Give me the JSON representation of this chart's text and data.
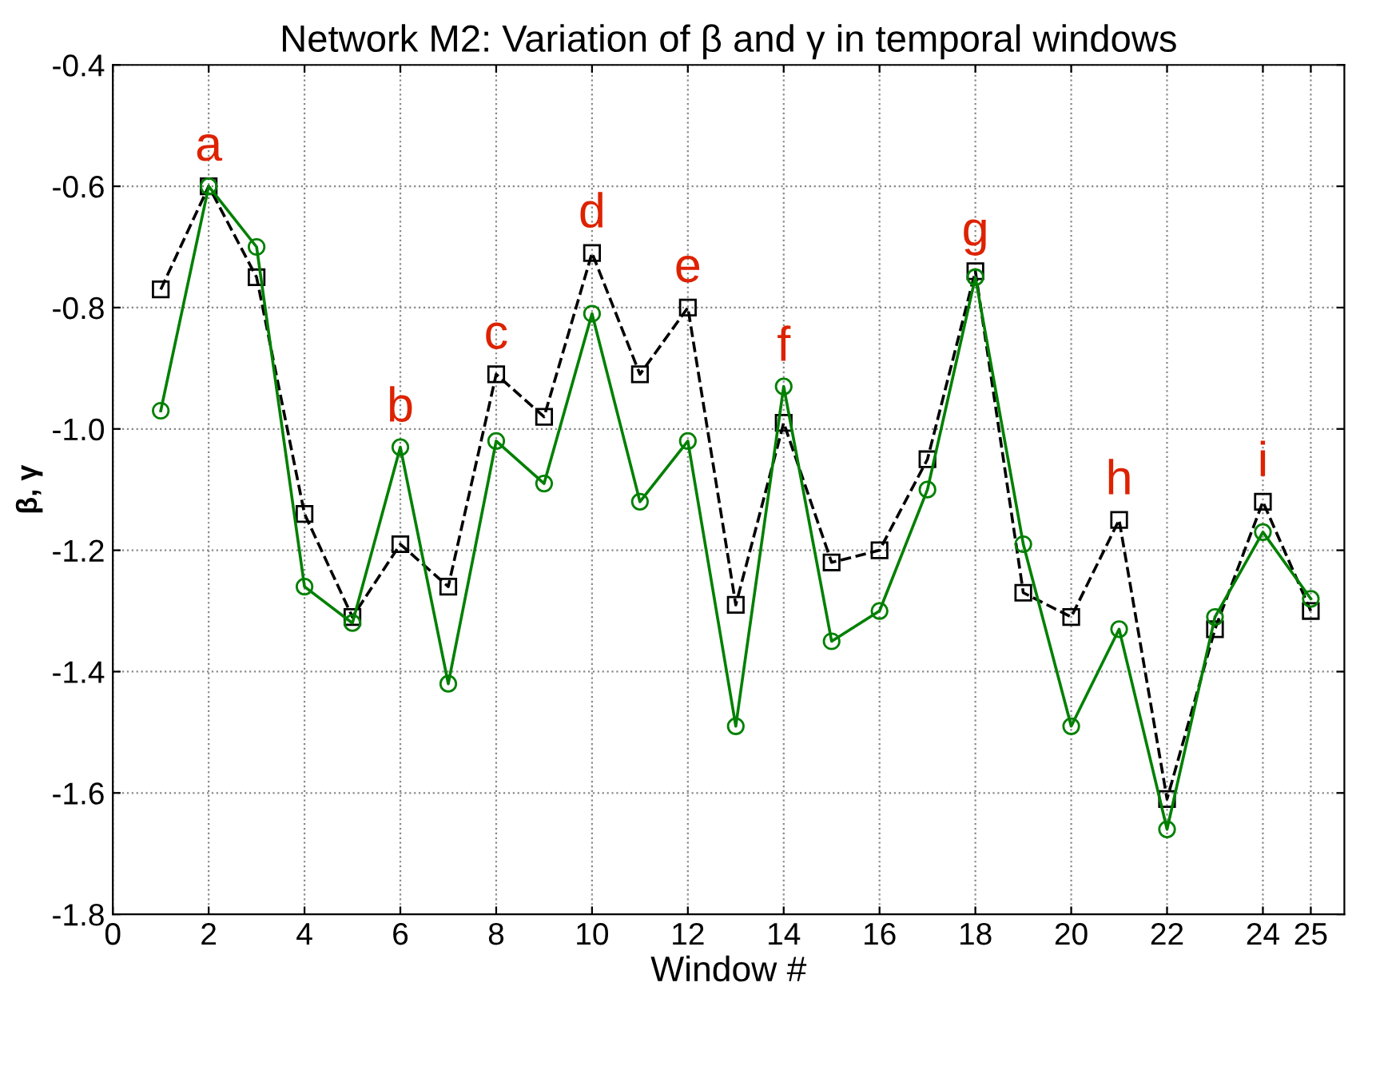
{
  "chart_data": {
    "type": "line",
    "title": "Network M2: Variation of β and γ in temporal windows",
    "xlabel": "Window #",
    "ylabel": "β, γ",
    "x": [
      1,
      2,
      3,
      4,
      5,
      6,
      7,
      8,
      9,
      10,
      11,
      12,
      13,
      14,
      15,
      16,
      17,
      18,
      19,
      20,
      21,
      22,
      23,
      24,
      25
    ],
    "series": [
      {
        "color": "#000000",
        "marker": "square",
        "line_style": "dashed",
        "values": [
          -0.77,
          -0.6,
          -0.75,
          -1.14,
          -1.31,
          -1.19,
          -1.26,
          -0.91,
          -0.98,
          -0.71,
          -0.91,
          -0.8,
          -1.29,
          -0.99,
          -1.22,
          -1.2,
          -1.05,
          -0.74,
          -1.27,
          -1.31,
          -1.15,
          -1.61,
          -1.33,
          -1.12,
          -1.3
        ]
      },
      {
        "color": "#008000",
        "marker": "circle",
        "line_style": "solid",
        "values": [
          -0.97,
          -0.6,
          -0.7,
          -1.26,
          -1.32,
          -1.03,
          -1.42,
          -1.02,
          -1.09,
          -0.81,
          -1.12,
          -1.02,
          -1.49,
          -0.93,
          -1.35,
          -1.3,
          -1.1,
          -0.75,
          -1.19,
          -1.49,
          -1.33,
          -1.66,
          -1.31,
          -1.17,
          -1.28
        ]
      }
    ],
    "annotations": [
      {
        "text": "a",
        "x": 2,
        "y": -0.6
      },
      {
        "text": "b",
        "x": 6,
        "y": -1.03
      },
      {
        "text": "c",
        "x": 8,
        "y": -0.91
      },
      {
        "text": "d",
        "x": 10,
        "y": -0.71
      },
      {
        "text": "e",
        "x": 12,
        "y": -0.8
      },
      {
        "text": "f",
        "x": 14,
        "y": -0.93
      },
      {
        "text": "g",
        "x": 18,
        "y": -0.74
      },
      {
        "text": "h",
        "x": 21,
        "y": -1.15
      },
      {
        "text": "i",
        "x": 24,
        "y": -1.12
      }
    ],
    "xlim": [
      0,
      25.7
    ],
    "xticks": [
      0,
      2,
      4,
      6,
      8,
      10,
      12,
      14,
      16,
      18,
      20,
      22,
      24,
      25
    ],
    "ylim": [
      -1.8,
      -0.4
    ],
    "yticks": [
      -1.8,
      -1.6,
      -1.4,
      -1.2,
      {
        "value": -1.0,
        "label": "-1.0"
      },
      -0.8,
      -0.6,
      -0.4
    ],
    "grid": true,
    "legend": false
  }
}
